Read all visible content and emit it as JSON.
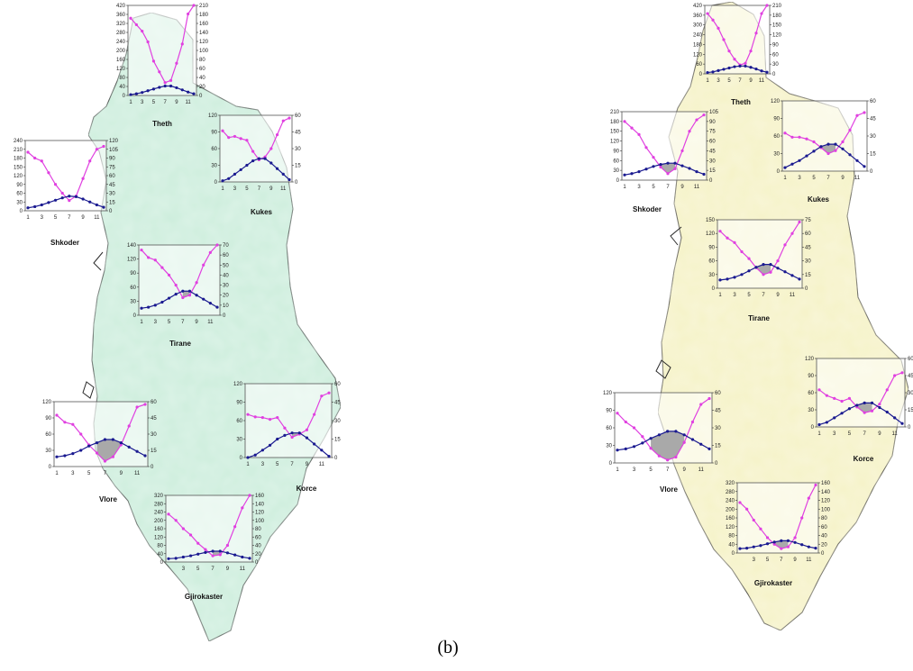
{
  "caption": "(b)",
  "colors": {
    "map_a_fill": "#cdeedd",
    "map_b_fill": "#f6f3c8",
    "border": "#2a2a2a",
    "precipitation_line": "#e040e0",
    "temperature_line": "#1a1a90",
    "overlap_fill": "#a9a9a9"
  },
  "chart_data": [
    {
      "type": "line",
      "map": "a",
      "title": "Theth",
      "x": [
        1,
        2,
        3,
        4,
        5,
        6,
        7,
        8,
        9,
        10,
        11,
        12
      ],
      "xticks": [
        "1",
        "3",
        "5",
        "7",
        "9",
        "11"
      ],
      "y_left": {
        "ticks": [
          "0",
          "40",
          "80",
          "120",
          "160",
          "200",
          "240",
          "280",
          "320",
          "360",
          "420"
        ],
        "lim": [
          0,
          420
        ]
      },
      "y_right": {
        "ticks": [
          "0",
          "20",
          "40",
          "60",
          "80",
          "100",
          "120",
          "140",
          "160",
          "180",
          "210"
        ],
        "lim": [
          0,
          210
        ]
      },
      "series": [
        {
          "axis": "left",
          "values": [
            360,
            330,
            300,
            250,
            160,
            110,
            60,
            70,
            150,
            240,
            380,
            420
          ]
        },
        {
          "axis": "right",
          "values": [
            2,
            4,
            7,
            11,
            15,
            19,
            22,
            22,
            18,
            13,
            8,
            4
          ]
        }
      ]
    },
    {
      "type": "line",
      "map": "a",
      "title": "Shkoder",
      "x": [
        1,
        2,
        3,
        4,
        5,
        6,
        7,
        8,
        9,
        10,
        11,
        12
      ],
      "xticks": [
        "1",
        "3",
        "5",
        "7",
        "9",
        "11"
      ],
      "y_left": {
        "ticks": [
          "0",
          "30",
          "60",
          "90",
          "120",
          "150",
          "180",
          "210",
          "240"
        ],
        "lim": [
          0,
          240
        ]
      },
      "y_right": {
        "ticks": [
          "0",
          "15",
          "30",
          "45",
          "60",
          "75",
          "90",
          "105",
          "120"
        ],
        "lim": [
          0,
          120
        ]
      },
      "series": [
        {
          "axis": "left",
          "values": [
            200,
            180,
            170,
            130,
            90,
            60,
            35,
            50,
            110,
            170,
            210,
            220
          ]
        },
        {
          "axis": "right",
          "values": [
            5,
            7,
            10,
            14,
            18,
            22,
            25,
            24,
            20,
            15,
            10,
            6
          ]
        }
      ]
    },
    {
      "type": "line",
      "map": "a",
      "title": "Kukes",
      "x": [
        1,
        2,
        3,
        4,
        5,
        6,
        7,
        8,
        9,
        10,
        11,
        12
      ],
      "xticks": [
        "1",
        "3",
        "5",
        "7",
        "9",
        "11"
      ],
      "y_left": {
        "ticks": [
          "0",
          "30",
          "60",
          "90",
          "120"
        ],
        "lim": [
          0,
          120
        ]
      },
      "y_right": {
        "ticks": [
          "0",
          "15",
          "30",
          "45",
          "60"
        ],
        "lim": [
          0,
          60
        ]
      },
      "series": [
        {
          "axis": "left",
          "values": [
            92,
            80,
            82,
            78,
            75,
            55,
            40,
            45,
            60,
            85,
            110,
            115
          ]
        },
        {
          "axis": "right",
          "values": [
            1,
            3,
            7,
            11,
            15,
            19,
            21,
            21,
            17,
            12,
            7,
            2
          ]
        }
      ]
    },
    {
      "type": "line",
      "map": "a",
      "title": "Tirane",
      "x": [
        1,
        2,
        3,
        4,
        5,
        6,
        7,
        8,
        9,
        10,
        11,
        12
      ],
      "xticks": [
        "1",
        "3",
        "5",
        "7",
        "9",
        "11"
      ],
      "y_left": {
        "ticks": [
          "0",
          "30",
          "60",
          "90",
          "120",
          "140"
        ],
        "lim": [
          0,
          140
        ]
      },
      "y_right": {
        "ticks": [
          "0",
          "10",
          "20",
          "30",
          "40",
          "50",
          "60",
          "70"
        ],
        "lim": [
          0,
          70
        ]
      },
      "series": [
        {
          "axis": "left",
          "values": [
            130,
            115,
            110,
            95,
            80,
            60,
            35,
            40,
            65,
            100,
            125,
            140
          ]
        },
        {
          "axis": "right",
          "values": [
            7,
            8,
            10,
            13,
            17,
            21,
            24,
            24,
            20,
            16,
            12,
            8
          ]
        }
      ]
    },
    {
      "type": "line",
      "map": "a",
      "title": "Vlore",
      "x": [
        1,
        2,
        3,
        4,
        5,
        6,
        7,
        8,
        9,
        10,
        11,
        12
      ],
      "xticks": [
        "1",
        "3",
        "5",
        "7",
        "9",
        "11"
      ],
      "y_left": {
        "ticks": [
          "0",
          "30",
          "60",
          "90",
          "120"
        ],
        "lim": [
          0,
          120
        ]
      },
      "y_right": {
        "ticks": [
          "0",
          "15",
          "30",
          "45",
          "60"
        ],
        "lim": [
          0,
          60
        ]
      },
      "series": [
        {
          "axis": "left",
          "values": [
            95,
            82,
            78,
            60,
            40,
            25,
            10,
            18,
            40,
            75,
            110,
            115
          ]
        },
        {
          "axis": "right",
          "values": [
            9,
            10,
            12,
            15,
            19,
            22,
            25,
            25,
            22,
            18,
            14,
            10
          ]
        }
      ]
    },
    {
      "type": "line",
      "map": "a",
      "title": "Korce",
      "x": [
        1,
        2,
        3,
        4,
        5,
        6,
        7,
        8,
        9,
        10,
        11,
        12
      ],
      "xticks": [
        "1",
        "3",
        "5",
        "7",
        "9",
        "11"
      ],
      "y_left": {
        "ticks": [
          "0",
          "30",
          "60",
          "90",
          "120"
        ],
        "lim": [
          0,
          120
        ]
      },
      "y_right": {
        "ticks": [
          "0",
          "15",
          "30",
          "45",
          "60"
        ],
        "lim": [
          0,
          60
        ]
      },
      "series": [
        {
          "axis": "left",
          "values": [
            70,
            66,
            65,
            62,
            65,
            48,
            33,
            38,
            45,
            70,
            100,
            105
          ]
        },
        {
          "axis": "right",
          "values": [
            0,
            2,
            6,
            10,
            15,
            18,
            20,
            20,
            16,
            11,
            6,
            1
          ]
        }
      ]
    },
    {
      "type": "line",
      "map": "a",
      "title": "Gjirokaster",
      "x": [
        1,
        2,
        3,
        4,
        5,
        6,
        7,
        8,
        9,
        10,
        11,
        12
      ],
      "xticks": [
        "3",
        "5",
        "7",
        "9",
        "11"
      ],
      "y_left": {
        "ticks": [
          "0",
          "40",
          "80",
          "120",
          "160",
          "200",
          "240",
          "280",
          "320"
        ],
        "lim": [
          0,
          320
        ]
      },
      "y_right": {
        "ticks": [
          "0",
          "20",
          "40",
          "60",
          "80",
          "100",
          "120",
          "140",
          "160"
        ],
        "lim": [
          0,
          160
        ]
      },
      "series": [
        {
          "axis": "left",
          "values": [
            230,
            200,
            160,
            130,
            90,
            60,
            30,
            35,
            80,
            170,
            260,
            320
          ]
        },
        {
          "axis": "right",
          "values": [
            8,
            9,
            12,
            15,
            19,
            23,
            26,
            26,
            22,
            17,
            12,
            9
          ]
        }
      ]
    },
    {
      "type": "line",
      "map": "b",
      "title": "Theth",
      "x": [
        1,
        2,
        3,
        4,
        5,
        6,
        7,
        8,
        9,
        10,
        11,
        12
      ],
      "xticks": [
        "1",
        "3",
        "5",
        "7",
        "9",
        "11"
      ],
      "y_left": {
        "ticks": [
          "0",
          "60",
          "120",
          "180",
          "240",
          "300",
          "360",
          "420"
        ],
        "lim": [
          0,
          420
        ]
      },
      "y_right": {
        "ticks": [
          "0",
          "30",
          "60",
          "90",
          "120",
          "150",
          "180",
          "210"
        ],
        "lim": [
          0,
          210
        ]
      },
      "series": [
        {
          "axis": "left",
          "values": [
            370,
            330,
            280,
            210,
            140,
            90,
            55,
            65,
            140,
            250,
            370,
            420
          ]
        },
        {
          "axis": "right",
          "values": [
            4,
            6,
            10,
            14,
            18,
            22,
            24,
            24,
            20,
            15,
            9,
            5
          ]
        }
      ]
    },
    {
      "type": "line",
      "map": "b",
      "title": "Shkoder",
      "x": [
        1,
        2,
        3,
        4,
        5,
        6,
        7,
        8,
        9,
        10,
        11,
        12
      ],
      "xticks": [
        "1",
        "3",
        "5",
        "7",
        "9",
        "11"
      ],
      "y_left": {
        "ticks": [
          "0",
          "30",
          "60",
          "90",
          "120",
          "150",
          "180",
          "210"
        ],
        "lim": [
          0,
          210
        ]
      },
      "y_right": {
        "ticks": [
          "0",
          "15",
          "30",
          "45",
          "60",
          "75",
          "90",
          "105"
        ],
        "lim": [
          0,
          105
        ]
      },
      "series": [
        {
          "axis": "left",
          "values": [
            180,
            160,
            140,
            100,
            70,
            40,
            20,
            35,
            90,
            150,
            185,
            200
          ]
        },
        {
          "axis": "right",
          "values": [
            8,
            10,
            13,
            17,
            21,
            24,
            26,
            26,
            22,
            18,
            13,
            9
          ]
        }
      ]
    },
    {
      "type": "line",
      "map": "b",
      "title": "Kukes",
      "x": [
        1,
        2,
        3,
        4,
        5,
        6,
        7,
        8,
        9,
        10,
        11,
        12
      ],
      "xticks": [
        "1",
        "3",
        "5",
        "7",
        "9",
        "11"
      ],
      "y_left": {
        "ticks": [
          "0",
          "30",
          "60",
          "90",
          "120"
        ],
        "lim": [
          0,
          120
        ]
      },
      "y_right": {
        "ticks": [
          "0",
          "15",
          "30",
          "45",
          "60"
        ],
        "lim": [
          0,
          60
        ]
      },
      "series": [
        {
          "axis": "left",
          "values": [
            65,
            58,
            58,
            55,
            50,
            40,
            30,
            35,
            50,
            70,
            95,
            100
          ]
        },
        {
          "axis": "right",
          "values": [
            3,
            6,
            9,
            13,
            17,
            21,
            23,
            23,
            19,
            14,
            9,
            4
          ]
        }
      ]
    },
    {
      "type": "line",
      "map": "b",
      "title": "Tirane",
      "x": [
        1,
        2,
        3,
        4,
        5,
        6,
        7,
        8,
        9,
        10,
        11,
        12
      ],
      "xticks": [
        "1",
        "3",
        "5",
        "7",
        "9",
        "11"
      ],
      "y_left": {
        "ticks": [
          "0",
          "30",
          "60",
          "90",
          "120",
          "150"
        ],
        "lim": [
          0,
          150
        ]
      },
      "y_right": {
        "ticks": [
          "0",
          "15",
          "30",
          "45",
          "60",
          "75"
        ],
        "lim": [
          0,
          75
        ]
      },
      "series": [
        {
          "axis": "left",
          "values": [
            125,
            110,
            100,
            80,
            65,
            45,
            30,
            35,
            60,
            95,
            120,
            145
          ]
        },
        {
          "axis": "right",
          "values": [
            9,
            10,
            12,
            15,
            19,
            23,
            26,
            26,
            22,
            18,
            14,
            10
          ]
        }
      ]
    },
    {
      "type": "line",
      "map": "b",
      "title": "Vlore",
      "x": [
        1,
        2,
        3,
        4,
        5,
        6,
        7,
        8,
        9,
        10,
        11,
        12
      ],
      "xticks": [
        "1",
        "3",
        "5",
        "7",
        "9",
        "11"
      ],
      "y_left": {
        "ticks": [
          "0",
          "30",
          "60",
          "90",
          "120"
        ],
        "lim": [
          0,
          120
        ]
      },
      "y_right": {
        "ticks": [
          "0",
          "15",
          "30",
          "45",
          "60"
        ],
        "lim": [
          0,
          60
        ]
      },
      "series": [
        {
          "axis": "left",
          "values": [
            85,
            70,
            60,
            45,
            25,
            12,
            5,
            10,
            35,
            70,
            100,
            110
          ]
        },
        {
          "axis": "right",
          "values": [
            11,
            12,
            14,
            17,
            21,
            24,
            27,
            27,
            24,
            20,
            16,
            12
          ]
        }
      ]
    },
    {
      "type": "line",
      "map": "b",
      "title": "Korce",
      "x": [
        1,
        2,
        3,
        4,
        5,
        6,
        7,
        8,
        9,
        10,
        11,
        12
      ],
      "xticks": [
        "1",
        "3",
        "5",
        "7",
        "9",
        "11"
      ],
      "y_left": {
        "ticks": [
          "0",
          "30",
          "60",
          "90",
          "120"
        ],
        "lim": [
          0,
          120
        ]
      },
      "y_right": {
        "ticks": [
          "0",
          "15",
          "30",
          "45",
          "60"
        ],
        "lim": [
          0,
          60
        ]
      },
      "series": [
        {
          "axis": "left",
          "values": [
            65,
            55,
            50,
            45,
            50,
            35,
            25,
            28,
            40,
            65,
            90,
            95
          ]
        },
        {
          "axis": "right",
          "values": [
            2,
            4,
            8,
            12,
            16,
            19,
            21,
            21,
            17,
            13,
            8,
            3
          ]
        }
      ]
    },
    {
      "type": "line",
      "map": "b",
      "title": "Gjirokaster",
      "x": [
        1,
        2,
        3,
        4,
        5,
        6,
        7,
        8,
        9,
        10,
        11,
        12
      ],
      "xticks": [
        "3",
        "5",
        "7",
        "9",
        "11"
      ],
      "y_left": {
        "ticks": [
          "0",
          "40",
          "80",
          "120",
          "160",
          "200",
          "240",
          "280",
          "320"
        ],
        "lim": [
          0,
          320
        ]
      },
      "y_right": {
        "ticks": [
          "0",
          "20",
          "40",
          "60",
          "80",
          "100",
          "120",
          "140",
          "160"
        ],
        "lim": [
          0,
          160
        ]
      },
      "series": [
        {
          "axis": "left",
          "values": [
            230,
            200,
            150,
            110,
            70,
            40,
            20,
            28,
            70,
            160,
            250,
            310
          ]
        },
        {
          "axis": "right",
          "values": [
            10,
            11,
            14,
            17,
            21,
            25,
            28,
            28,
            24,
            19,
            14,
            11
          ]
        }
      ]
    }
  ]
}
